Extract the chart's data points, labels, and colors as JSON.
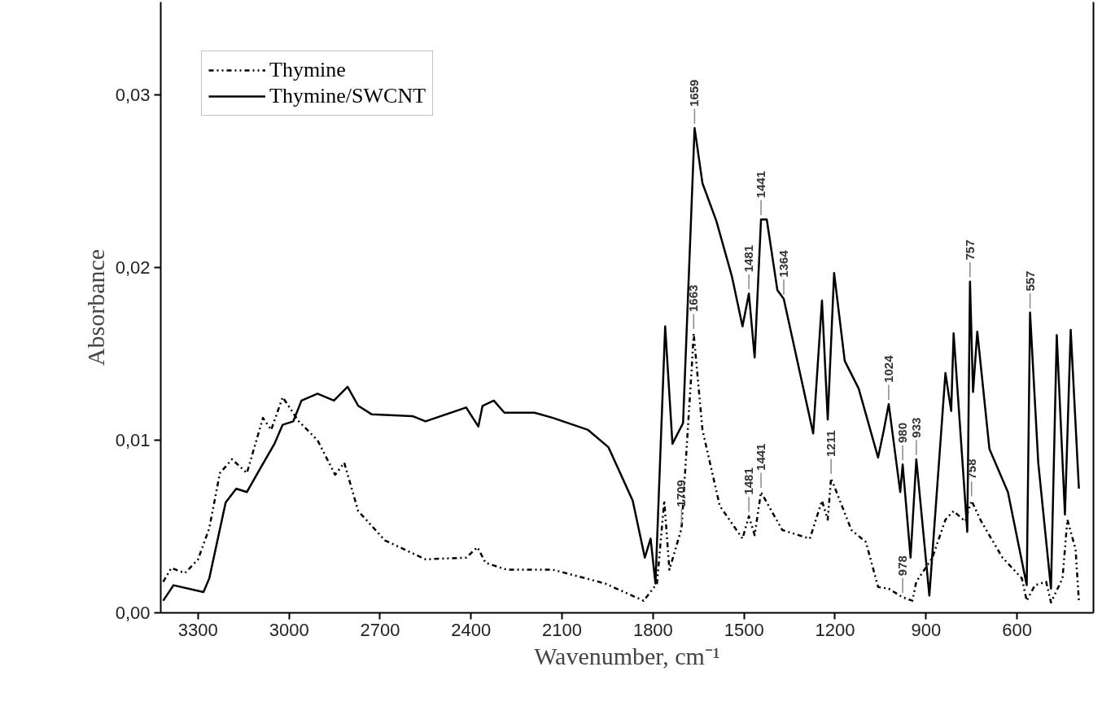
{
  "chart_data": {
    "type": "line",
    "xlabel": "Wavenumber, cm⁻¹",
    "ylabel": "Absorbance",
    "xlim": [
      3423,
      348
    ],
    "ylim": [
      0,
      0.0354
    ],
    "xticks": [
      3300,
      3000,
      2700,
      2400,
      2100,
      1800,
      1500,
      1200,
      900,
      600
    ],
    "yticks": [
      {
        "value": 0,
        "label": "0,00"
      },
      {
        "value": 0.01,
        "label": "0,01"
      },
      {
        "value": 0.02,
        "label": "0,02"
      },
      {
        "value": 0.03,
        "label": "0,03"
      }
    ],
    "legend": "top left",
    "grid": false,
    "series": [
      {
        "name": "Thymine",
        "color": "#000000",
        "line_style": "dotted",
        "x": [
          3415,
          3388,
          3343,
          3300,
          3263,
          3228,
          3188,
          3139,
          3086,
          3059,
          3021,
          2968,
          2906,
          2848,
          2818,
          2772,
          2684,
          2550,
          2416,
          2379,
          2352,
          2282,
          2130,
          1958,
          1831,
          1787,
          1763,
          1746,
          1706,
          1671,
          1666,
          1637,
          1580,
          1505,
          1484,
          1465,
          1444,
          1374,
          1283,
          1243,
          1224,
          1213,
          1146,
          1098,
          1058,
          1023,
          977,
          945,
          932,
          879,
          836,
          809,
          771,
          750,
          718,
          648,
          584,
          568,
          541,
          504,
          488,
          450,
          434,
          407,
          396
        ],
        "values": [
          0.0018,
          0.0026,
          0.0023,
          0.0031,
          0.0049,
          0.0081,
          0.0089,
          0.0081,
          0.0113,
          0.0106,
          0.0125,
          0.0111,
          0.01,
          0.008,
          0.0087,
          0.0059,
          0.0042,
          0.0031,
          0.0032,
          0.0038,
          0.0029,
          0.0025,
          0.0025,
          0.0017,
          0.0007,
          0.0017,
          0.0065,
          0.0025,
          0.0049,
          0.0146,
          0.0162,
          0.0106,
          0.0062,
          0.0043,
          0.0056,
          0.0045,
          0.007,
          0.0048,
          0.0043,
          0.0065,
          0.0054,
          0.0078,
          0.0048,
          0.0041,
          0.0015,
          0.0014,
          0.0009,
          0.0007,
          0.0018,
          0.0032,
          0.0054,
          0.0059,
          0.0053,
          0.0065,
          0.0053,
          0.0032,
          0.002,
          0.0007,
          0.0016,
          0.0018,
          0.0006,
          0.002,
          0.0054,
          0.0037,
          0.0007
        ]
      },
      {
        "name": "Thymine/SWCNT",
        "color": "#000000",
        "line_style": "solid",
        "x": [
          3415,
          3381,
          3282,
          3263,
          3209,
          3174,
          3139,
          3094,
          3048,
          3021,
          2986,
          2959,
          2906,
          2852,
          2807,
          2772,
          2727,
          2593,
          2550,
          2416,
          2376,
          2362,
          2325,
          2290,
          2191,
          2130,
          2014,
          1947,
          1867,
          1827,
          1808,
          1792,
          1760,
          1736,
          1701,
          1663,
          1637,
          1591,
          1540,
          1505,
          1484,
          1465,
          1444,
          1425,
          1390,
          1369,
          1272,
          1243,
          1224,
          1203,
          1168,
          1122,
          1058,
          1039,
          1023,
          985,
          977,
          951,
          932,
          889,
          836,
          817,
          809,
          764,
          755,
          745,
          731,
          691,
          630,
          568,
          557,
          530,
          488,
          469,
          442,
          423,
          396
        ],
        "values": [
          0.0007,
          0.0016,
          0.0012,
          0.002,
          0.0064,
          0.0072,
          0.007,
          0.0084,
          0.0098,
          0.0109,
          0.0111,
          0.0123,
          0.0127,
          0.0123,
          0.0131,
          0.012,
          0.0115,
          0.0114,
          0.0111,
          0.0119,
          0.0108,
          0.012,
          0.0123,
          0.0116,
          0.0116,
          0.0113,
          0.0106,
          0.0096,
          0.0065,
          0.0032,
          0.0043,
          0.0017,
          0.0166,
          0.0098,
          0.011,
          0.0281,
          0.0249,
          0.0227,
          0.0195,
          0.0166,
          0.0185,
          0.0148,
          0.0228,
          0.0228,
          0.0187,
          0.0182,
          0.0104,
          0.0181,
          0.0112,
          0.0197,
          0.0146,
          0.013,
          0.009,
          0.0106,
          0.0121,
          0.007,
          0.0086,
          0.0032,
          0.0089,
          0.001,
          0.0139,
          0.0117,
          0.0162,
          0.0047,
          0.0192,
          0.0128,
          0.0163,
          0.0095,
          0.007,
          0.0016,
          0.0174,
          0.0087,
          0.0014,
          0.0161,
          0.0057,
          0.0164,
          0.0072
        ]
      }
    ],
    "annotations": [
      {
        "text": "1659",
        "x": 1663,
        "y": 0.0281
      },
      {
        "text": "1481",
        "x": 1484,
        "y": 0.0185
      },
      {
        "text": "1441",
        "x": 1444,
        "y": 0.0228
      },
      {
        "text": "1364",
        "x": 1369,
        "y": 0.0182
      },
      {
        "text": "1663",
        "x": 1666,
        "y": 0.0162
      },
      {
        "text": "1709",
        "x": 1706,
        "y": 0.0049
      },
      {
        "text": "1481",
        "x": 1484,
        "y": 0.0056
      },
      {
        "text": "1441",
        "x": 1444,
        "y": 0.007
      },
      {
        "text": "1211",
        "x": 1213,
        "y": 0.0078
      },
      {
        "text": "1024",
        "x": 1023,
        "y": 0.0121
      },
      {
        "text": "980",
        "x": 977,
        "y": 0.0086
      },
      {
        "text": "933",
        "x": 932,
        "y": 0.0089
      },
      {
        "text": "978",
        "x": 977,
        "y": 0.0009
      },
      {
        "text": "758",
        "x": 750,
        "y": 0.0065
      },
      {
        "text": "757",
        "x": 755,
        "y": 0.0192
      },
      {
        "text": "557",
        "x": 557,
        "y": 0.0174
      }
    ]
  }
}
